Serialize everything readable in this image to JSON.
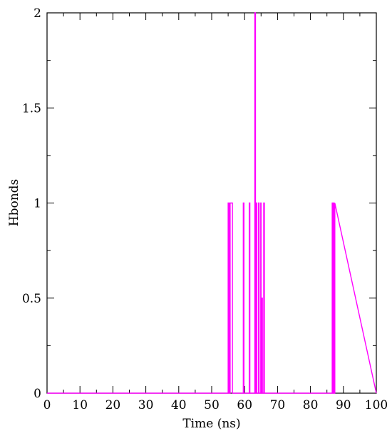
{
  "chart_data": {
    "type": "line",
    "title": "",
    "xlabel": "Time (ns)",
    "ylabel": "Hbonds",
    "xlim": [
      0,
      100
    ],
    "ylim": [
      0,
      2
    ],
    "x_major_ticks": [
      0,
      10,
      20,
      30,
      40,
      50,
      60,
      70,
      80,
      90,
      100
    ],
    "x_tick_labels": [
      "0",
      "10",
      "20",
      "30",
      "40",
      "50",
      "60",
      "70",
      "80",
      "90",
      "100"
    ],
    "y_major_ticks": [
      0,
      0.5,
      1,
      1.5,
      2
    ],
    "y_tick_labels": [
      "0",
      "0.5",
      "1",
      "1.5",
      "2"
    ],
    "x_minor_step": 5,
    "y_minor_step": 0.25,
    "grid": false,
    "legend": "none",
    "series": [
      {
        "color": "#ff00ff",
        "x": [
          0,
          55,
          55,
          55.3,
          55.3,
          55.6,
          55.6,
          56.3,
          56.3,
          59.6,
          59.6,
          59.8,
          59.8,
          61.4,
          61.4,
          61.6,
          61.6,
          63.1,
          63.1,
          63.3,
          63.3,
          63.5,
          63.5,
          63.7,
          63.7,
          64.2,
          64.2,
          64.4,
          64.4,
          64.9,
          64.9,
          65.0,
          65.0,
          65.2,
          65.2,
          65.4,
          65.4,
          65.8,
          65.8,
          66.0,
          66.0,
          86.6,
          86.6,
          86.8,
          86.8,
          87.0,
          87.0,
          87.2,
          87.2,
          87.4,
          87.4,
          100
        ],
        "y": [
          0,
          0,
          1,
          1,
          0,
          0,
          1,
          1,
          0,
          0,
          1,
          1,
          0,
          0,
          1,
          1,
          0,
          0,
          2,
          2,
          0,
          0,
          1,
          1,
          0,
          0,
          1,
          1,
          0,
          0,
          1,
          1,
          0,
          0,
          0.5,
          0.5,
          0,
          0,
          1,
          1,
          0,
          0,
          1,
          1,
          0,
          0,
          1,
          1,
          0,
          0,
          1,
          0
        ]
      }
    ]
  },
  "colors": {
    "series": "#ff00ff",
    "axis": "#000000",
    "background": "#ffffff"
  }
}
